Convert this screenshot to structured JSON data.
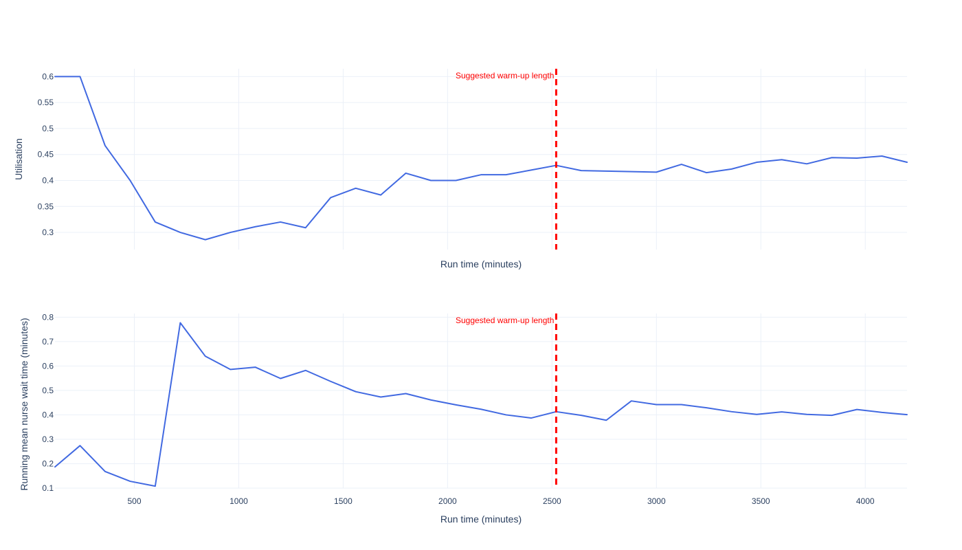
{
  "chart_data": [
    {
      "type": "line",
      "title": "",
      "xlabel": "Run time (minutes)",
      "ylabel": "Utilisation",
      "xlim": [
        120,
        4200
      ],
      "ylim": [
        0.267,
        0.615
      ],
      "x_ticks": [
        500,
        1000,
        1500,
        2000,
        2500,
        3000,
        3500,
        4000
      ],
      "y_ticks": [
        0.3,
        0.35,
        0.4,
        0.45,
        0.5,
        0.55,
        0.6
      ],
      "y_tick_labels": [
        "0.3",
        "0.35",
        "0.4",
        "0.45",
        "0.5",
        "0.55",
        "0.6"
      ],
      "show_x_tick_labels": false,
      "grid": true,
      "line_color": "#4169e1",
      "series": [
        {
          "x": [
            120,
            240,
            360,
            480,
            600,
            720,
            840,
            960,
            1080,
            1200,
            1320,
            1440,
            1560,
            1680,
            1800,
            1920,
            2040,
            2160,
            2280,
            2400,
            2520,
            2640,
            2760,
            2880,
            3000,
            3120,
            3240,
            3360,
            3480,
            3600,
            3720,
            3840,
            3960,
            4080,
            4200
          ],
          "y": [
            0.6,
            0.6,
            0.467,
            0.4,
            0.32,
            0.3,
            0.286,
            0.3,
            0.311,
            0.32,
            0.309,
            0.367,
            0.385,
            0.372,
            0.414,
            0.4,
            0.4,
            0.411,
            0.411,
            0.42,
            0.429,
            0.419,
            0.418,
            0.417,
            0.416,
            0.431,
            0.415,
            0.422,
            0.435,
            0.44,
            0.432,
            0.444,
            0.443,
            0.447,
            0.435
          ]
        }
      ],
      "vline": {
        "x": 2520,
        "color": "#ff0000",
        "label": "Suggested warm-up length"
      }
    },
    {
      "type": "line",
      "title": "",
      "xlabel": "Run time (minutes)",
      "ylabel": "Running mean nurse wait time (minutes)",
      "xlim": [
        120,
        4200
      ],
      "ylim": [
        0.1,
        0.815
      ],
      "x_ticks": [
        500,
        1000,
        1500,
        2000,
        2500,
        3000,
        3500,
        4000
      ],
      "x_tick_labels": [
        "500",
        "1000",
        "1500",
        "2000",
        "2500",
        "3000",
        "3500",
        "4000"
      ],
      "y_ticks": [
        0.1,
        0.2,
        0.3,
        0.4,
        0.5,
        0.6,
        0.7,
        0.8
      ],
      "y_tick_labels": [
        "0.1",
        "0.2",
        "0.3",
        "0.4",
        "0.5",
        "0.6",
        "0.7",
        "0.8"
      ],
      "show_x_tick_labels": true,
      "grid": true,
      "line_color": "#4169e1",
      "series": [
        {
          "x": [
            120,
            240,
            360,
            480,
            600,
            720,
            840,
            960,
            1080,
            1200,
            1320,
            1440,
            1560,
            1680,
            1800,
            1920,
            2040,
            2160,
            2280,
            2400,
            2520,
            2640,
            2760,
            2880,
            3000,
            3120,
            3240,
            3360,
            3480,
            3600,
            3720,
            3840,
            3960,
            4080,
            4200
          ],
          "y": [
            0.187,
            0.274,
            0.168,
            0.128,
            0.108,
            0.777,
            0.64,
            0.586,
            0.595,
            0.549,
            0.582,
            0.537,
            0.495,
            0.473,
            0.487,
            0.461,
            0.441,
            0.423,
            0.4,
            0.387,
            0.413,
            0.398,
            0.378,
            0.457,
            0.442,
            0.442,
            0.429,
            0.413,
            0.402,
            0.412,
            0.402,
            0.398,
            0.422,
            0.41,
            0.401
          ]
        }
      ],
      "vline": {
        "x": 2520,
        "color": "#ff0000",
        "label": "Suggested warm-up length"
      }
    }
  ]
}
